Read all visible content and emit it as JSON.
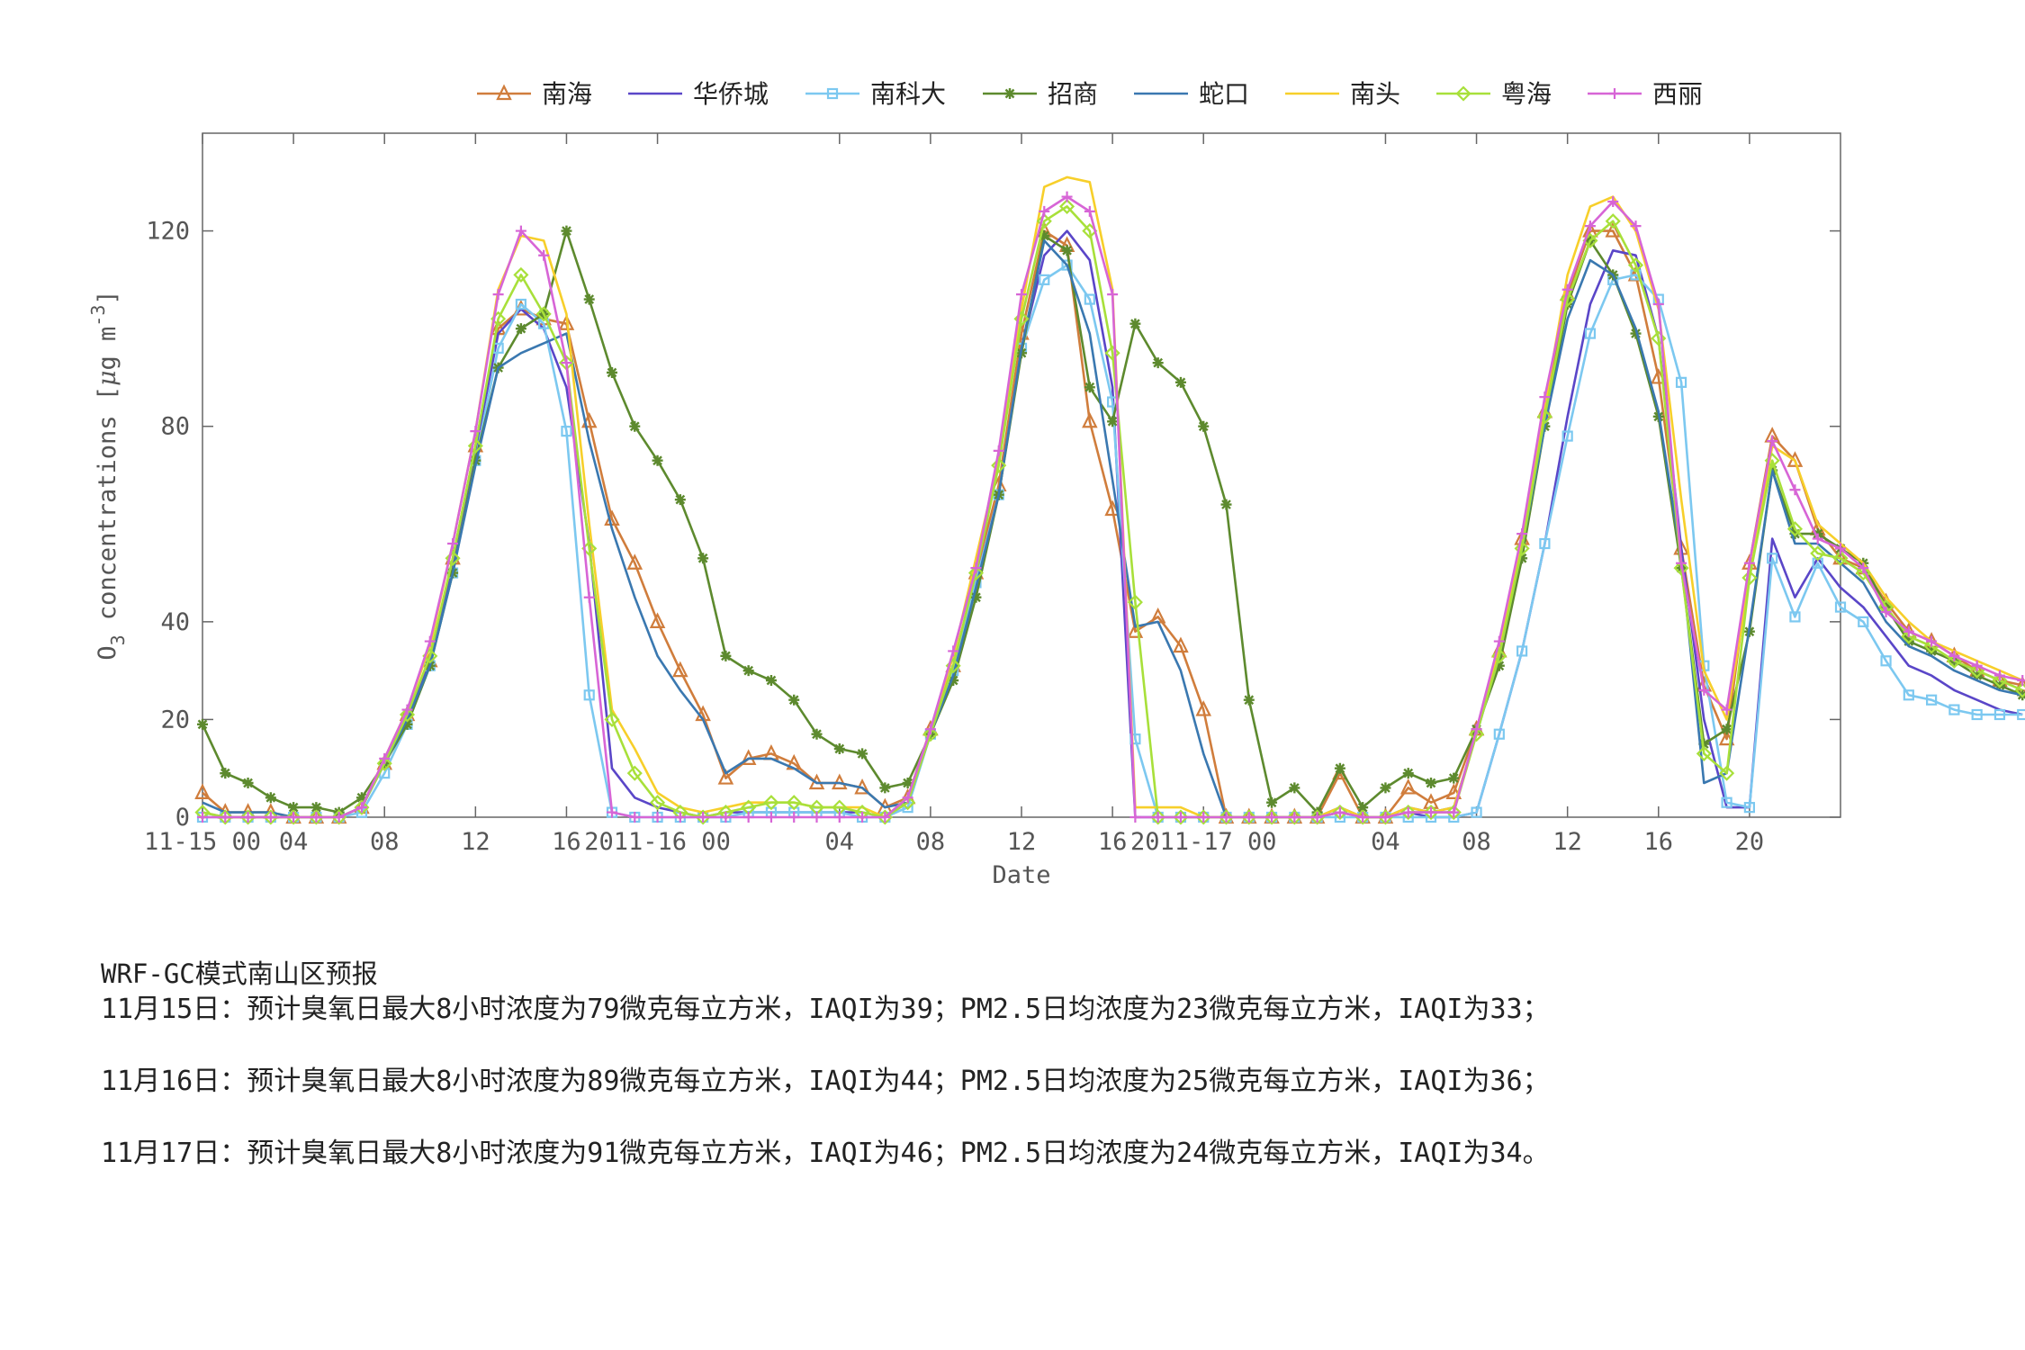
{
  "chart_data": {
    "type": "line",
    "xlabel": "Date",
    "ylabel": "O3 concentrations [μg m-3]",
    "ylabel_parts": {
      "o": "O",
      "sub3": "3",
      "rest": " concentrations [",
      "mu": "μ",
      "g": "g m",
      "sup": "-3",
      "close": "]"
    },
    "ylim": [
      0,
      140
    ],
    "y_ticks": [
      0,
      20,
      40,
      80,
      120
    ],
    "x_range_hours": [
      0,
      72
    ],
    "x_ticks": [
      {
        "hour": 0,
        "label": "11-15 00"
      },
      {
        "hour": 4,
        "label": "04"
      },
      {
        "hour": 8,
        "label": "08"
      },
      {
        "hour": 12,
        "label": "12"
      },
      {
        "hour": 16,
        "label": "16"
      },
      {
        "hour": 20,
        "label": "2011-16 00"
      },
      {
        "hour": 28,
        "label": "04"
      },
      {
        "hour": 32,
        "label": "08"
      },
      {
        "hour": 36,
        "label": "12"
      },
      {
        "hour": 40,
        "label": "16"
      },
      {
        "hour": 44,
        "label": "2011-17 00"
      },
      {
        "hour": 52,
        "label": "04"
      },
      {
        "hour": 56,
        "label": "08"
      },
      {
        "hour": 60,
        "label": "12"
      },
      {
        "hour": 64,
        "label": "16"
      },
      {
        "hour": 68,
        "label": "20"
      }
    ],
    "legend_position": "top-center",
    "series": [
      {
        "name": "南海",
        "color": "#d07d3c",
        "marker": "triangle",
        "values": [
          5,
          1,
          1,
          1,
          0,
          0,
          0,
          2,
          11,
          21,
          32,
          53,
          76,
          100,
          104,
          102,
          101,
          81,
          61,
          52,
          40,
          30,
          21,
          8,
          12,
          13,
          11,
          7,
          7,
          6,
          2,
          4,
          18,
          31,
          50,
          68,
          99,
          120,
          117,
          81,
          63,
          38,
          41,
          35,
          22,
          0,
          0,
          0,
          0,
          0,
          9,
          0,
          0,
          6,
          3,
          5,
          18,
          34,
          57,
          83,
          107,
          120,
          120,
          111,
          90,
          55,
          27,
          16,
          52,
          78,
          73,
          59,
          53,
          51,
          44,
          38,
          36,
          33,
          30,
          28,
          27
        ]
      },
      {
        "name": "华侨城",
        "color": "#5a46c8",
        "marker": "none",
        "values": [
          1,
          0,
          0,
          0,
          0,
          0,
          0,
          2,
          11,
          20,
          32,
          52,
          75,
          99,
          104,
          100,
          88,
          56,
          10,
          4,
          2,
          1,
          0,
          1,
          1,
          1,
          1,
          1,
          1,
          1,
          0,
          3,
          17,
          30,
          48,
          66,
          96,
          115,
          120,
          114,
          88,
          0,
          0,
          0,
          0,
          0,
          0,
          0,
          0,
          0,
          1,
          0,
          0,
          1,
          0,
          0,
          1,
          17,
          34,
          56,
          82,
          105,
          116,
          115,
          98,
          55,
          20,
          2,
          2,
          57,
          45,
          53,
          47,
          43,
          37,
          31,
          29,
          26,
          24,
          22,
          21
        ]
      },
      {
        "name": "南科大",
        "color": "#7cc8f0",
        "marker": "square",
        "values": [
          0,
          0,
          0,
          0,
          0,
          0,
          0,
          1,
          9,
          19,
          31,
          50,
          73,
          96,
          105,
          101,
          79,
          25,
          1,
          0,
          0,
          0,
          0,
          0,
          1,
          1,
          1,
          1,
          1,
          0,
          0,
          2,
          17,
          30,
          48,
          66,
          96,
          110,
          113,
          106,
          85,
          16,
          0,
          0,
          0,
          0,
          0,
          0,
          0,
          0,
          0,
          0,
          0,
          0,
          0,
          0,
          1,
          17,
          34,
          56,
          78,
          99,
          110,
          111,
          106,
          89,
          31,
          3,
          2,
          53,
          41,
          52,
          43,
          40,
          32,
          25,
          24,
          22,
          21,
          21,
          21
        ]
      },
      {
        "name": "招商",
        "color": "#5d8a2e",
        "marker": "star",
        "values": [
          19,
          9,
          7,
          4,
          2,
          2,
          1,
          4,
          11,
          19,
          31,
          50,
          73,
          92,
          100,
          103,
          120,
          106,
          91,
          80,
          73,
          65,
          53,
          33,
          30,
          28,
          24,
          17,
          14,
          13,
          6,
          7,
          17,
          28,
          45,
          66,
          95,
          119,
          116,
          88,
          81,
          101,
          93,
          89,
          80,
          64,
          24,
          3,
          6,
          1,
          10,
          2,
          6,
          9,
          7,
          8,
          18,
          31,
          53,
          80,
          105,
          118,
          111,
          99,
          82,
          51,
          15,
          18,
          38,
          71,
          58,
          58,
          55,
          52,
          43,
          36,
          34,
          32,
          29,
          27,
          25
        ]
      },
      {
        "name": "蛇口",
        "color": "#3a78b0",
        "marker": "none",
        "values": [
          3,
          1,
          1,
          1,
          0,
          0,
          0,
          2,
          11,
          20,
          31,
          50,
          72,
          92,
          95,
          97,
          99,
          77,
          59,
          45,
          33,
          26,
          20,
          9,
          12,
          12,
          10,
          7,
          7,
          6,
          2,
          3,
          17,
          29,
          47,
          66,
          96,
          118,
          113,
          99,
          69,
          39,
          40,
          30,
          13,
          0,
          0,
          0,
          0,
          0,
          2,
          0,
          0,
          2,
          1,
          2,
          17,
          33,
          55,
          80,
          102,
          114,
          111,
          100,
          83,
          53,
          7,
          9,
          39,
          71,
          56,
          56,
          52,
          48,
          40,
          35,
          33,
          30,
          28,
          26,
          25
        ]
      },
      {
        "name": "南头",
        "color": "#f7cf2a",
        "marker": "none",
        "values": [
          1,
          0,
          0,
          0,
          0,
          0,
          0,
          2,
          12,
          22,
          35,
          56,
          79,
          108,
          119,
          118,
          103,
          60,
          22,
          14,
          5,
          2,
          1,
          2,
          3,
          3,
          3,
          2,
          2,
          2,
          0,
          4,
          18,
          33,
          53,
          73,
          104,
          129,
          131,
          130,
          108,
          2,
          2,
          2,
          0,
          0,
          0,
          0,
          0,
          0,
          2,
          0,
          0,
          2,
          1,
          2,
          17,
          35,
          57,
          84,
          111,
          125,
          127,
          120,
          104,
          65,
          30,
          20,
          49,
          76,
          73,
          60,
          56,
          52,
          45,
          40,
          36,
          34,
          32,
          30,
          28
        ]
      },
      {
        "name": "粤海",
        "color": "#a8e03a",
        "marker": "diamond",
        "values": [
          1,
          0,
          0,
          0,
          0,
          0,
          0,
          2,
          11,
          21,
          33,
          53,
          76,
          102,
          111,
          103,
          93,
          55,
          20,
          9,
          3,
          1,
          0,
          1,
          2,
          3,
          3,
          2,
          2,
          1,
          0,
          3,
          17,
          31,
          50,
          72,
          102,
          122,
          125,
          120,
          95,
          44,
          0,
          0,
          0,
          0,
          0,
          0,
          0,
          0,
          1,
          0,
          0,
          1,
          1,
          1,
          17,
          33,
          55,
          82,
          106,
          118,
          122,
          113,
          98,
          51,
          13,
          9,
          49,
          73,
          59,
          54,
          53,
          50,
          43,
          37,
          35,
          32,
          30,
          28,
          26
        ]
      },
      {
        "name": "西丽",
        "color": "#d765d6",
        "marker": "plus",
        "values": [
          0,
          0,
          0,
          0,
          0,
          0,
          0,
          2,
          12,
          22,
          36,
          56,
          79,
          107,
          120,
          115,
          93,
          45,
          1,
          0,
          0,
          0,
          0,
          0,
          0,
          0,
          0,
          0,
          0,
          0,
          0,
          4,
          18,
          34,
          51,
          75,
          107,
          124,
          127,
          124,
          107,
          0,
          0,
          0,
          0,
          0,
          0,
          0,
          0,
          0,
          1,
          0,
          0,
          1,
          1,
          1,
          18,
          36,
          58,
          86,
          108,
          121,
          126,
          121,
          105,
          52,
          26,
          22,
          52,
          77,
          67,
          57,
          55,
          51,
          42,
          38,
          36,
          33,
          31,
          29,
          28
        ]
      }
    ]
  },
  "notes": {
    "heading": "WRF-GC模式南山区预报",
    "lines": [
      "11月15日：预计臭氧日最大8小时浓度为79微克每立方米，IAQI为39；PM2.5日均浓度为23微克每立方米，IAQI为33；",
      "11月16日：预计臭氧日最大8小时浓度为89微克每立方米，IAQI为44；PM2.5日均浓度为25微克每立方米，IAQI为36；",
      "11月17日：预计臭氧日最大8小时浓度为91微克每立方米，IAQI为46；PM2.5日均浓度为24微克每立方米，IAQI为34。"
    ]
  }
}
